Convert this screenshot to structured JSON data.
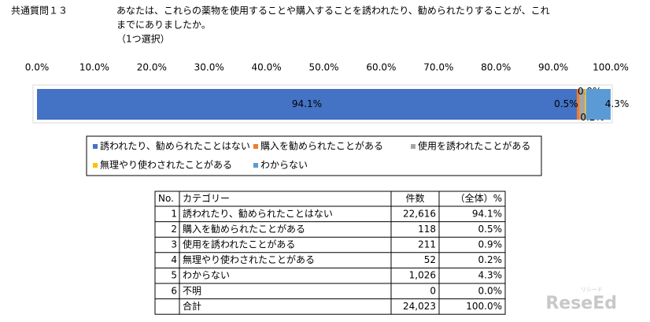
{
  "header": {
    "number": "共通質問１３",
    "question_lines": [
      "あなたは、これらの薬物を使用することや購入することを誘われたり、勧められたりすることが、これ",
      "までにありましたか。",
      "（1つ選択）"
    ]
  },
  "chart_data": {
    "type": "stacked-bar-horizontal",
    "xlim": [
      0,
      100
    ],
    "xticks": [
      {
        "value": 0,
        "label": "0.0%"
      },
      {
        "value": 10,
        "label": "10.0%"
      },
      {
        "value": 20,
        "label": "20.0%"
      },
      {
        "value": 30,
        "label": "30.0%"
      },
      {
        "value": 40,
        "label": "40.0%"
      },
      {
        "value": 50,
        "label": "50.0%"
      },
      {
        "value": 60,
        "label": "60.0%"
      },
      {
        "value": 70,
        "label": "70.0%"
      },
      {
        "value": 80,
        "label": "80.0%"
      },
      {
        "value": 90,
        "label": "90.0%"
      },
      {
        "value": 100,
        "label": "100.0%"
      }
    ],
    "grid": false,
    "legend": "bottom",
    "series": [
      {
        "name": "誘われたり、勧められたことはない",
        "color": "#4472c4",
        "values": [
          94.1
        ],
        "value_labels": [
          "94.1%"
        ]
      },
      {
        "name": "購入を勧められたことがある",
        "color": "#ed7d31",
        "values": [
          0.5
        ],
        "value_labels": [
          "0.5%"
        ]
      },
      {
        "name": "使用を誘われたことがある",
        "color": "#a5a5a5",
        "values": [
          0.9
        ],
        "value_labels": [
          "0.9%"
        ]
      },
      {
        "name": "無理やり使わされたことがある",
        "color": "#ffc000",
        "values": [
          0.2
        ],
        "value_labels": [
          "0.2%"
        ]
      },
      {
        "name": "わからない",
        "color": "#5b9bd5",
        "values": [
          4.3
        ],
        "value_labels": [
          "4.3%"
        ]
      }
    ]
  },
  "table": {
    "columns": [
      "No.",
      "カテゴリー",
      "件数",
      "（全体）%"
    ],
    "rows": [
      [
        "1",
        "誘われたり、勧められたことはない",
        "22,616",
        "94.1%"
      ],
      [
        "2",
        "購入を勧められたことがある",
        "118",
        "0.5%"
      ],
      [
        "3",
        "使用を誘われたことがある",
        "211",
        "0.9%"
      ],
      [
        "4",
        "無理やり使わされたことがある",
        "52",
        "0.2%"
      ],
      [
        "5",
        "わからない",
        "1,026",
        "4.3%"
      ],
      [
        "6",
        "不明",
        "0",
        "0.0%"
      ]
    ],
    "total": {
      "label": "合計",
      "count": "24,023",
      "percent": "100.0%"
    }
  },
  "watermark": {
    "text": "ReseEd",
    "sub": "リシード"
  }
}
